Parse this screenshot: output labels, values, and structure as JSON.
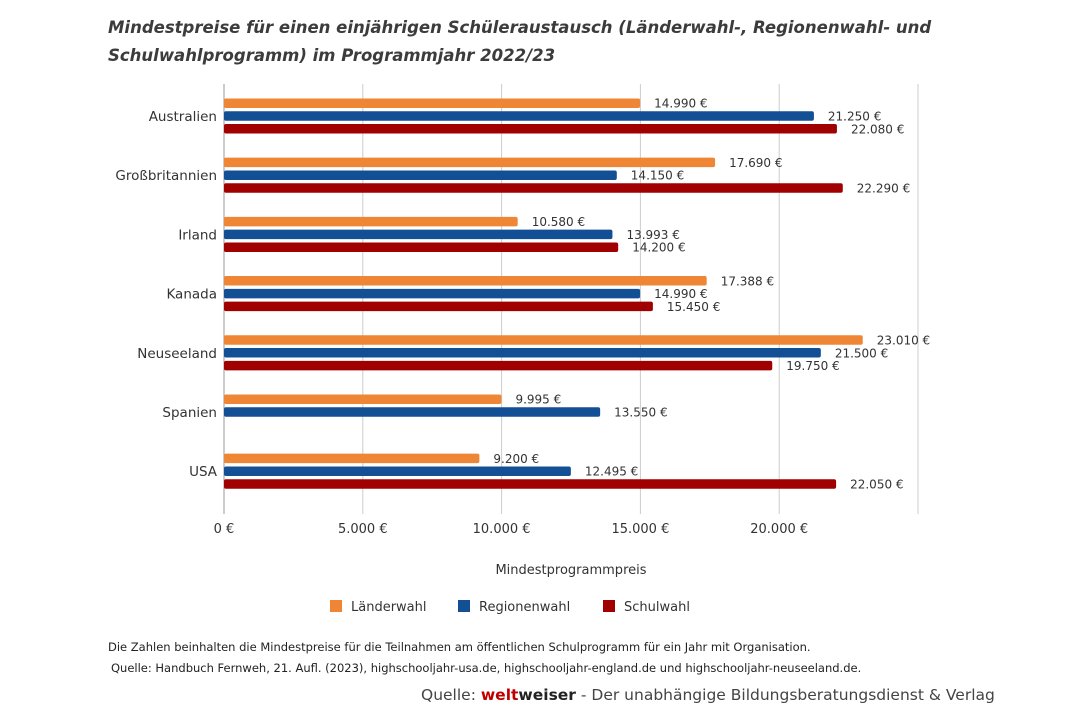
{
  "title": "Mindestpreise für einen einjährigen Schüleraustausch (Länderwahl-, Regionenwahl- und Schulwahlprogramm) im Programmjahr 2022/23",
  "colors": {
    "Länderwahl": "#ef8636",
    "Regionenwahl": "#134f94",
    "Schulwahl": "#a00000",
    "grid": "#cccccc"
  },
  "chart_data": {
    "type": "bar",
    "orientation": "horizontal",
    "categories": [
      "Australien",
      "Großbritannien",
      "Irland",
      "Kanada",
      "Neuseeland",
      "Spanien",
      "USA"
    ],
    "series": [
      {
        "name": "Länderwahl",
        "values": [
          14990,
          17690,
          10580,
          17388,
          23010,
          9995,
          9200
        ],
        "labels": [
          "14.990 €",
          "17.690 €",
          "10.580 €",
          "17.388 €",
          "23.010 €",
          "9.995 €",
          "9.200 €"
        ]
      },
      {
        "name": "Regionenwahl",
        "values": [
          21250,
          14150,
          13993,
          14990,
          21500,
          13550,
          12495
        ],
        "labels": [
          "21.250 €",
          "14.150 €",
          "13.993 €",
          "14.990 €",
          "21.500 €",
          "13.550 €",
          "12.495 €"
        ]
      },
      {
        "name": "Schulwahl",
        "values": [
          22080,
          22290,
          14200,
          15450,
          19750,
          null,
          22050
        ],
        "labels": [
          "22.080 €",
          "22.290 €",
          "14.200 €",
          "15.450 €",
          "19.750 €",
          null,
          "22.050 €"
        ]
      }
    ],
    "xlim": [
      0,
      25000
    ],
    "xticks": [
      0,
      5000,
      10000,
      15000,
      20000
    ],
    "xtick_labels": [
      "0 €",
      "5.000 €",
      "10.000 €",
      "15.000 €",
      "20.000 €"
    ],
    "xlabel": "Mindestprogrammpreis",
    "grid": true,
    "legend": "bottom"
  },
  "note_lines": [
    "Die Zahlen beinhalten die Mindestpreise für die Teilnahmen am öffentlichen Schulprogramm für ein Jahr mit Organisation.",
    "Quelle: Handbuch Fernweh, 21. Aufl. (2023), highschooljahr-usa.de, highschooljahr-england.de und highschooljahr-neuseeland.de."
  ],
  "source": {
    "prefix": "Quelle: ",
    "brand_red": "welt",
    "brand_dark": "weiser",
    "suffix": " - Der unabhängige Bildungsberatungsdienst & Verlag"
  }
}
